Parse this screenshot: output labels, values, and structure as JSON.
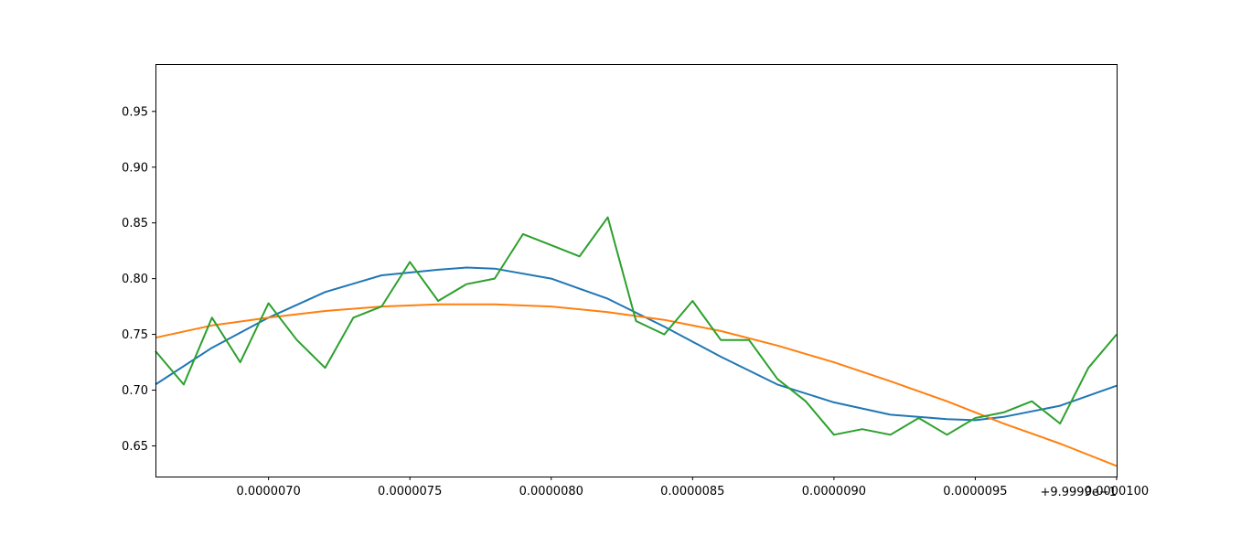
{
  "chart_data": {
    "type": "line",
    "title": "",
    "xlabel": "",
    "ylabel": "",
    "x_offset_label": "+9.9999e−1",
    "xlim": [
      6.6e-06,
      1e-05
    ],
    "ylim": [
      0.6225,
      0.9925
    ],
    "x_ticks": [
      7e-06,
      7.5e-06,
      8e-06,
      8.5e-06,
      9e-06,
      9.5e-06,
      1e-05
    ],
    "x_tick_labels": [
      "0.0000070",
      "0.0000075",
      "0.0000080",
      "0.0000085",
      "0.0000090",
      "0.0000095",
      "0.0000100"
    ],
    "y_ticks": [
      0.65,
      0.7,
      0.75,
      0.8,
      0.85,
      0.9,
      0.95
    ],
    "y_tick_labels": [
      "0.65",
      "0.70",
      "0.75",
      "0.80",
      "0.85",
      "0.90",
      "0.95"
    ],
    "grid": false,
    "series": [
      {
        "color": "#1f77b4",
        "x": [
          6.6e-06,
          6.8e-06,
          7e-06,
          7.2e-06,
          7.4e-06,
          7.6e-06,
          7.7e-06,
          7.8e-06,
          8e-06,
          8.2e-06,
          8.4e-06,
          8.6e-06,
          8.8e-06,
          9e-06,
          9.2e-06,
          9.4e-06,
          9.5e-06,
          9.6e-06,
          9.8e-06,
          1e-05
        ],
        "y": [
          0.705,
          0.738,
          0.765,
          0.788,
          0.803,
          0.808,
          0.81,
          0.809,
          0.8,
          0.782,
          0.757,
          0.73,
          0.705,
          0.689,
          0.678,
          0.674,
          0.673,
          0.676,
          0.686,
          0.704
        ]
      },
      {
        "color": "#ff7f0e",
        "x": [
          6.6e-06,
          6.8e-06,
          7e-06,
          7.2e-06,
          7.4e-06,
          7.6e-06,
          7.8e-06,
          8e-06,
          8.2e-06,
          8.4e-06,
          8.6e-06,
          8.8e-06,
          9e-06,
          9.2e-06,
          9.4e-06,
          9.6e-06,
          9.8e-06,
          1e-05
        ],
        "y": [
          0.747,
          0.758,
          0.765,
          0.771,
          0.775,
          0.777,
          0.777,
          0.775,
          0.77,
          0.763,
          0.753,
          0.74,
          0.725,
          0.708,
          0.69,
          0.67,
          0.652,
          0.632
        ]
      },
      {
        "color": "#2ca02c",
        "x": [
          6.6e-06,
          6.7e-06,
          6.8e-06,
          6.9e-06,
          7e-06,
          7.1e-06,
          7.2e-06,
          7.3e-06,
          7.4e-06,
          7.5e-06,
          7.6e-06,
          7.7e-06,
          7.8e-06,
          7.9e-06,
          8e-06,
          8.1e-06,
          8.2e-06,
          8.3e-06,
          8.4e-06,
          8.5e-06,
          8.6e-06,
          8.7e-06,
          8.8e-06,
          8.9e-06,
          9e-06,
          9.1e-06,
          9.2e-06,
          9.3e-06,
          9.4e-06,
          9.5e-06,
          9.6e-06,
          9.7e-06,
          9.8e-06,
          9.9e-06,
          1e-05
        ],
        "y": [
          0.735,
          0.705,
          0.765,
          0.725,
          0.778,
          0.745,
          0.72,
          0.765,
          0.775,
          0.815,
          0.78,
          0.795,
          0.8,
          0.84,
          0.83,
          0.82,
          0.855,
          0.762,
          0.75,
          0.78,
          0.745,
          0.745,
          0.71,
          0.69,
          0.66,
          0.665,
          0.66,
          0.675,
          0.66,
          0.675,
          0.68,
          0.69,
          0.67,
          0.72,
          0.75
        ]
      }
    ]
  }
}
